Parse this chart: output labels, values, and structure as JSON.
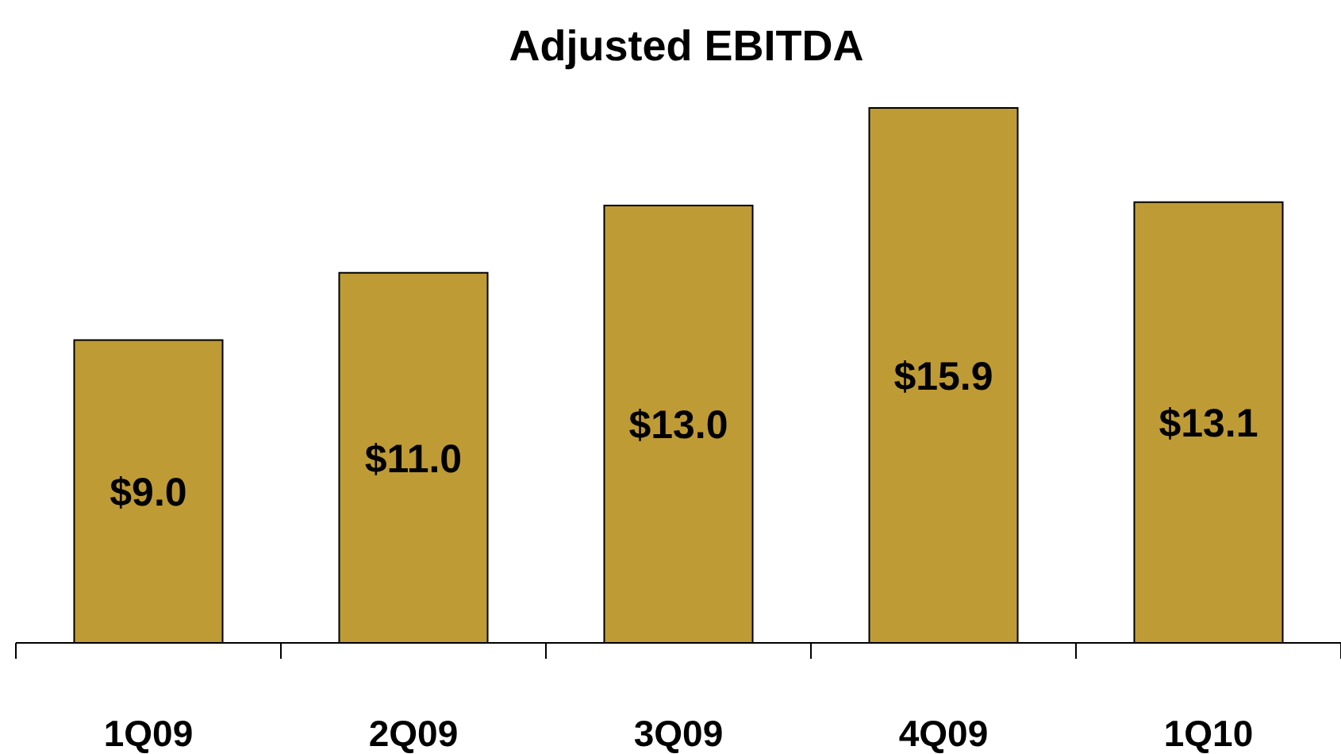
{
  "chart_data": {
    "type": "bar",
    "title": "Adjusted EBITDA",
    "categories": [
      "1Q09",
      "2Q09",
      "3Q09",
      "4Q09",
      "1Q10"
    ],
    "values": [
      9.0,
      11.0,
      13.0,
      15.9,
      13.1
    ],
    "value_labels": [
      "$9.0",
      "$11.0",
      "$13.0",
      "$15.9",
      "$13.1"
    ],
    "color": "#bf9b35"
  }
}
